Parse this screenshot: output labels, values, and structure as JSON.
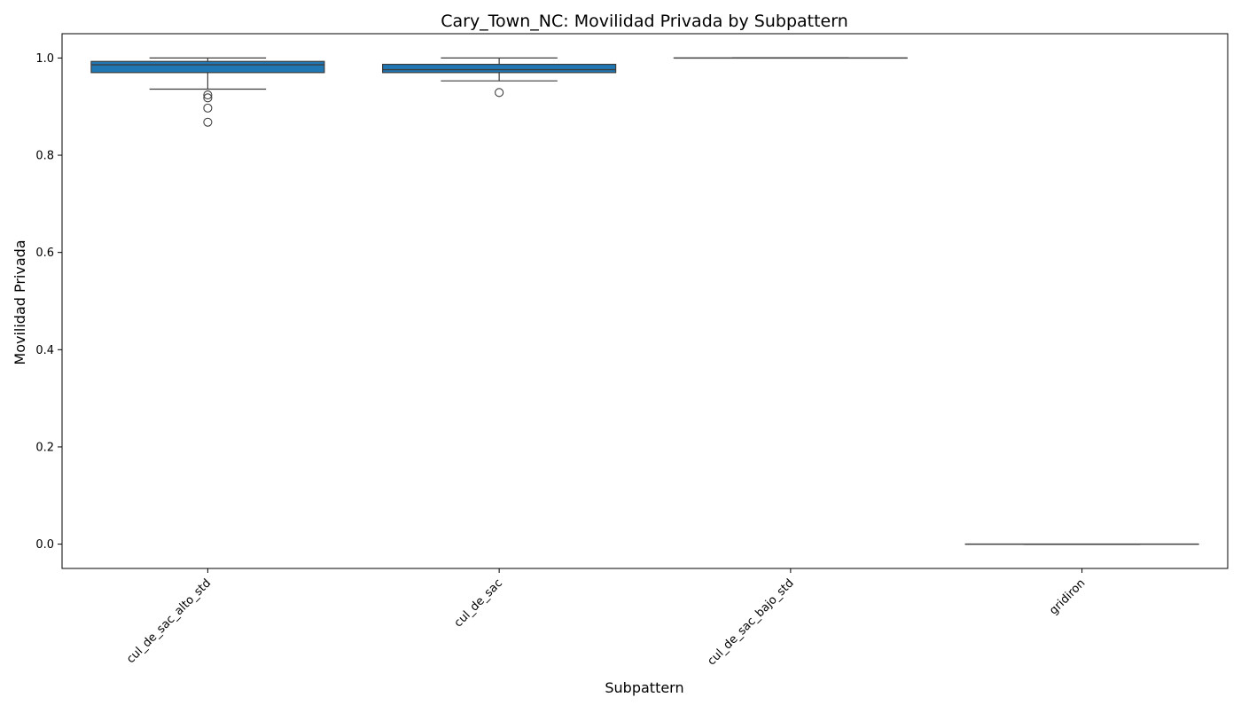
{
  "chart_data": {
    "type": "box",
    "title": "Cary_Town_NC: Movilidad Privada by Subpattern",
    "xlabel": "Subpattern",
    "ylabel": "Movilidad Privada",
    "ylim": [
      -0.05,
      1.05
    ],
    "yticks": [
      0.0,
      0.2,
      0.4,
      0.6,
      0.8,
      1.0
    ],
    "ytick_labels": [
      "0.0",
      "0.2",
      "0.4",
      "0.6",
      "0.8",
      "1.0"
    ],
    "grid": false,
    "box_color": "#1f77b4",
    "line_color": "#3d3d3d",
    "categories": [
      "cul_de_sac_alto_std",
      "cul_de_sac",
      "cul_de_sac_bajo_std",
      "gridiron"
    ],
    "boxes": [
      {
        "category": "cul_de_sac_alto_std",
        "whisker_low": 0.936,
        "q1": 0.97,
        "median": 0.986,
        "q3": 0.993,
        "whisker_high": 1.0,
        "outliers": [
          0.924,
          0.918,
          0.897,
          0.868
        ]
      },
      {
        "category": "cul_de_sac",
        "whisker_low": 0.953,
        "q1": 0.97,
        "median": 0.976,
        "q3": 0.987,
        "whisker_high": 1.0,
        "outliers": [
          0.929
        ]
      },
      {
        "category": "cul_de_sac_bajo_std",
        "whisker_low": 1.0,
        "q1": 1.0,
        "median": 1.0,
        "q3": 1.0,
        "whisker_high": 1.0,
        "outliers": []
      },
      {
        "category": "gridiron",
        "whisker_low": 0.0,
        "q1": 0.0,
        "median": 0.0,
        "q3": 0.0,
        "whisker_high": 0.0,
        "outliers": []
      }
    ]
  }
}
